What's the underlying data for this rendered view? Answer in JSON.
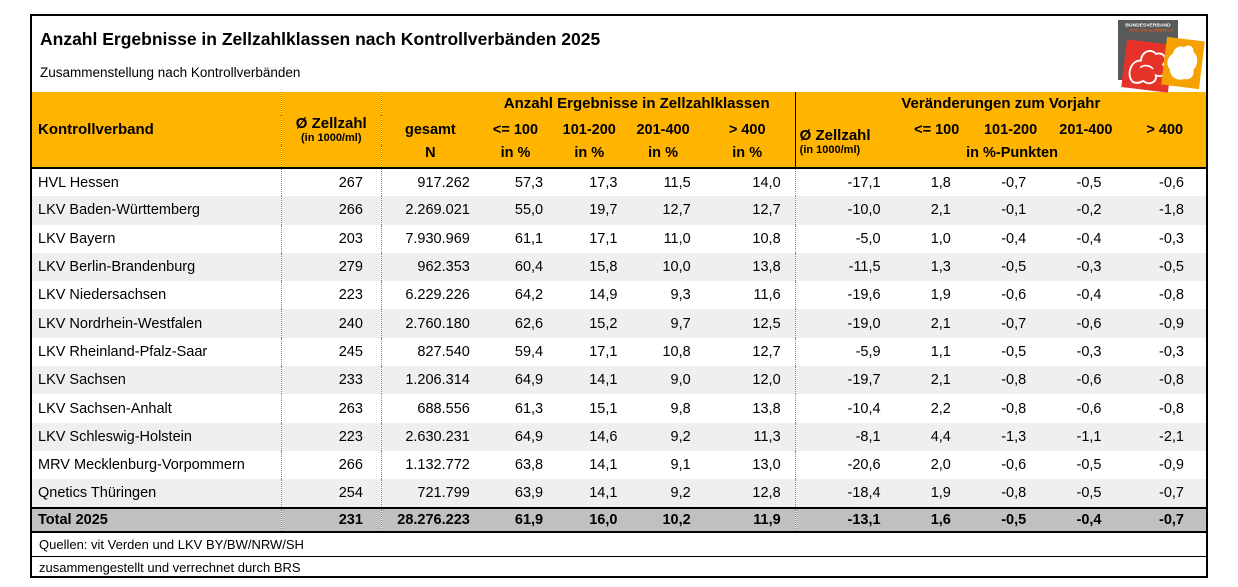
{
  "title": "Anzahl Ergebnisse in Zellzahlklassen nach Kontrollverbänden 2025",
  "subtitle": "Zusammenstellung nach Kontrollverbänden",
  "logo": {
    "line1": "BUNDESVERBAND",
    "line2": "RIND UND SCHWEIN E.V."
  },
  "colors": {
    "header_orange": "#FFB400",
    "stripe_gray": "#EFEFEF",
    "total_gray": "#C0C0C0",
    "logo_gray": "#58595B",
    "logo_red": "#E5332A",
    "logo_orange": "#F5A100"
  },
  "table": {
    "group_left": "Anzahl Ergebnisse in Zellzahlklassen",
    "group_right": "Veränderungen zum Vorjahr",
    "columns": {
      "kontrollverband": "Kontrollverband",
      "zellzahl": "Ø Zellzahl",
      "zellzahl_sub": "(in 1000/ml)",
      "gesamt": "gesamt",
      "gesamt_sub": "N",
      "c100": "<= 100",
      "c101_200": "101-200",
      "c201_400": "201-400",
      "c400": "> 400",
      "in_pct": "in %",
      "pct_punkte": "in %-Punkten"
    },
    "rows": [
      {
        "name": "HVL Hessen",
        "values": [
          "267",
          "917.262",
          "57,3",
          "17,3",
          "11,5",
          "14,0",
          "-17,1",
          "1,8",
          "-0,7",
          "-0,5",
          "-0,6"
        ]
      },
      {
        "name": "LKV Baden-Württemberg",
        "values": [
          "266",
          "2.269.021",
          "55,0",
          "19,7",
          "12,7",
          "12,7",
          "-10,0",
          "2,1",
          "-0,1",
          "-0,2",
          "-1,8"
        ]
      },
      {
        "name": "LKV Bayern",
        "values": [
          "203",
          "7.930.969",
          "61,1",
          "17,1",
          "11,0",
          "10,8",
          "-5,0",
          "1,0",
          "-0,4",
          "-0,4",
          "-0,3"
        ]
      },
      {
        "name": "LKV Berlin-Brandenburg",
        "values": [
          "279",
          "962.353",
          "60,4",
          "15,8",
          "10,0",
          "13,8",
          "-11,5",
          "1,3",
          "-0,5",
          "-0,3",
          "-0,5"
        ]
      },
      {
        "name": "LKV Niedersachsen",
        "values": [
          "223",
          "6.229.226",
          "64,2",
          "14,9",
          "9,3",
          "11,6",
          "-19,6",
          "1,9",
          "-0,6",
          "-0,4",
          "-0,8"
        ]
      },
      {
        "name": "LKV Nordrhein-Westfalen",
        "values": [
          "240",
          "2.760.180",
          "62,6",
          "15,2",
          "9,7",
          "12,5",
          "-19,0",
          "2,1",
          "-0,7",
          "-0,6",
          "-0,9"
        ]
      },
      {
        "name": "LKV Rheinland-Pfalz-Saar",
        "values": [
          "245",
          "827.540",
          "59,4",
          "17,1",
          "10,8",
          "12,7",
          "-5,9",
          "1,1",
          "-0,5",
          "-0,3",
          "-0,3"
        ]
      },
      {
        "name": "LKV Sachsen",
        "values": [
          "233",
          "1.206.314",
          "64,9",
          "14,1",
          "9,0",
          "12,0",
          "-19,7",
          "2,1",
          "-0,8",
          "-0,6",
          "-0,8"
        ]
      },
      {
        "name": "LKV Sachsen-Anhalt",
        "values": [
          "263",
          "688.556",
          "61,3",
          "15,1",
          "9,8",
          "13,8",
          "-10,4",
          "2,2",
          "-0,8",
          "-0,6",
          "-0,8"
        ]
      },
      {
        "name": "LKV Schleswig-Holstein",
        "values": [
          "223",
          "2.630.231",
          "64,9",
          "14,6",
          "9,2",
          "11,3",
          "-8,1",
          "4,4",
          "-1,3",
          "-1,1",
          "-2,1"
        ]
      },
      {
        "name": "MRV Mecklenburg-Vorpommern",
        "values": [
          "266",
          "1.132.772",
          "63,8",
          "14,1",
          "9,1",
          "13,0",
          "-20,6",
          "2,0",
          "-0,6",
          "-0,5",
          "-0,9"
        ]
      },
      {
        "name": "Qnetics Thüringen",
        "values": [
          "254",
          "721.799",
          "63,9",
          "14,1",
          "9,2",
          "12,8",
          "-18,4",
          "1,9",
          "-0,8",
          "-0,5",
          "-0,7"
        ]
      }
    ],
    "total": {
      "name": "Total 2025",
      "values": [
        "231",
        "28.276.223",
        "61,9",
        "16,0",
        "10,2",
        "11,9",
        "-13,1",
        "1,6",
        "-0,5",
        "-0,4",
        "-0,7"
      ]
    }
  },
  "footer": {
    "line1": "Quellen: vit Verden und LKV BY/BW/NRW/SH",
    "line2": "zusammengestellt und verrechnet durch BRS"
  }
}
